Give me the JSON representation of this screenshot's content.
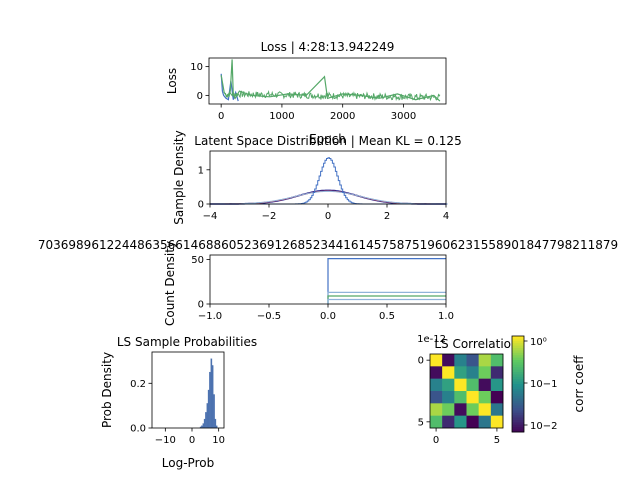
{
  "chart_data": [
    {
      "type": "line",
      "title": "Loss | 4:28:13.942249",
      "xlabel": "Epoch",
      "ylabel": "Loss",
      "xlim": [
        -200,
        3700
      ],
      "ylim": [
        -3,
        13
      ],
      "xticks": [
        0,
        1000,
        2000,
        3000
      ],
      "yticks": [
        0,
        10
      ],
      "series": [
        {
          "color": "#4472c4",
          "x": [
            0,
            20,
            40,
            80,
            120,
            160,
            200,
            240,
            280
          ],
          "y": [
            7.5,
            1.5,
            0.0,
            -1.0,
            -1.5,
            5.0,
            -1.5,
            1.0,
            -2.0
          ]
        },
        {
          "color": "#55a868",
          "x": [
            0,
            50,
            100,
            150,
            180,
            200,
            230,
            300,
            500,
            800,
            1100,
            1400,
            1700,
            1750,
            2000,
            2300,
            2600,
            2900,
            3200,
            3500,
            3600
          ],
          "y": [
            7.0,
            1.0,
            -0.5,
            1.5,
            12.5,
            0.0,
            -1.0,
            1.5,
            0.0,
            -0.5,
            0.5,
            0.0,
            6.5,
            -1.0,
            0.5,
            0.0,
            -1.0,
            0.5,
            -1.5,
            0.0,
            -2.0
          ]
        }
      ]
    },
    {
      "type": "line",
      "title": "Latent Space Distribution | Mean KL = 0.125",
      "xlabel": "",
      "ylabel": "Sample Density",
      "xlim": [
        -4,
        4
      ],
      "ylim": [
        0,
        1.55
      ],
      "xticks": [
        -4,
        -2,
        0,
        2,
        4
      ],
      "yticks": [
        0,
        1
      ],
      "series": [
        {
          "kind": "gaussian",
          "color": "#1a1a8c",
          "mu": 0.0,
          "sigma": 1.0,
          "amp": 0.399
        },
        {
          "kind": "gaussian",
          "color": "#e0504d",
          "mu": 0.0,
          "sigma": 1.05,
          "amp": 0.38
        },
        {
          "kind": "gaussian",
          "color": "#8fb3d9",
          "mu": 0.0,
          "sigma": 1.1,
          "amp": 0.37
        },
        {
          "kind": "gaussian",
          "color": "#4472c4",
          "mu": 0.0,
          "sigma": 0.3,
          "amp": 1.35
        }
      ]
    },
    {
      "type": "line",
      "title": "7036989612244863566146886052369126852344161457587519606231558901847798211879",
      "xlabel": "",
      "ylabel": "Count Density",
      "scale_label": "1e-12",
      "xlim": [
        -1.0,
        1.0
      ],
      "ylim": [
        0,
        55
      ],
      "xticks": [
        -1.0,
        -0.5,
        0.0,
        0.5,
        1.0
      ],
      "yticks": [
        0,
        50
      ],
      "series": [
        {
          "color": "#4472c4",
          "x": [
            0.0,
            0.0,
            1.0
          ],
          "y": [
            0,
            51,
            51
          ]
        },
        {
          "color": "#8fb3d9",
          "x": [
            0.0,
            0.0,
            1.0
          ],
          "y": [
            0,
            13,
            13
          ]
        },
        {
          "color": "#55a868",
          "x": [
            0.0,
            0.0,
            1.0
          ],
          "y": [
            0,
            9,
            9
          ]
        },
        {
          "color": "#8fb3d9",
          "x": [
            0.0,
            0.0,
            1.0
          ],
          "y": [
            0,
            5,
            5
          ]
        }
      ]
    },
    {
      "type": "bar",
      "title": "LS Sample Probabilities",
      "xlabel": "Log-Prob",
      "ylabel": "Prob Density",
      "xlim": [
        -15,
        12
      ],
      "ylim": [
        0,
        0.34
      ],
      "xticks": [
        -10,
        0,
        10
      ],
      "yticks": [
        0.0,
        0.2
      ],
      "bins": [
        3.0,
        3.5,
        4.0,
        4.5,
        5.0,
        5.5,
        6.0,
        6.5,
        7.0,
        7.5,
        8.0,
        8.5,
        9.0
      ],
      "values": [
        0.005,
        0.01,
        0.02,
        0.04,
        0.07,
        0.11,
        0.17,
        0.25,
        0.31,
        0.28,
        0.15,
        0.04,
        0.01
      ],
      "color": "#4c72b0"
    },
    {
      "type": "heatmap",
      "title": "LS Correlation",
      "xticks": [
        0,
        5
      ],
      "yticks": [
        0,
        5
      ],
      "colorbar_label": "corr coeff",
      "colorbar_ticks": [
        "10−2",
        "10−1",
        "10⁰"
      ],
      "matrix": [
        [
          1.0,
          0.006,
          0.05,
          0.02,
          0.5,
          0.2
        ],
        [
          0.006,
          1.0,
          0.1,
          0.05,
          0.3,
          0.01
        ],
        [
          0.05,
          0.1,
          1.0,
          0.2,
          0.006,
          0.08
        ],
        [
          0.02,
          0.05,
          0.2,
          1.0,
          0.3,
          0.005
        ],
        [
          0.5,
          0.3,
          0.006,
          0.3,
          1.0,
          0.04
        ],
        [
          0.2,
          0.01,
          0.08,
          0.005,
          0.04,
          1.0
        ]
      ]
    }
  ]
}
